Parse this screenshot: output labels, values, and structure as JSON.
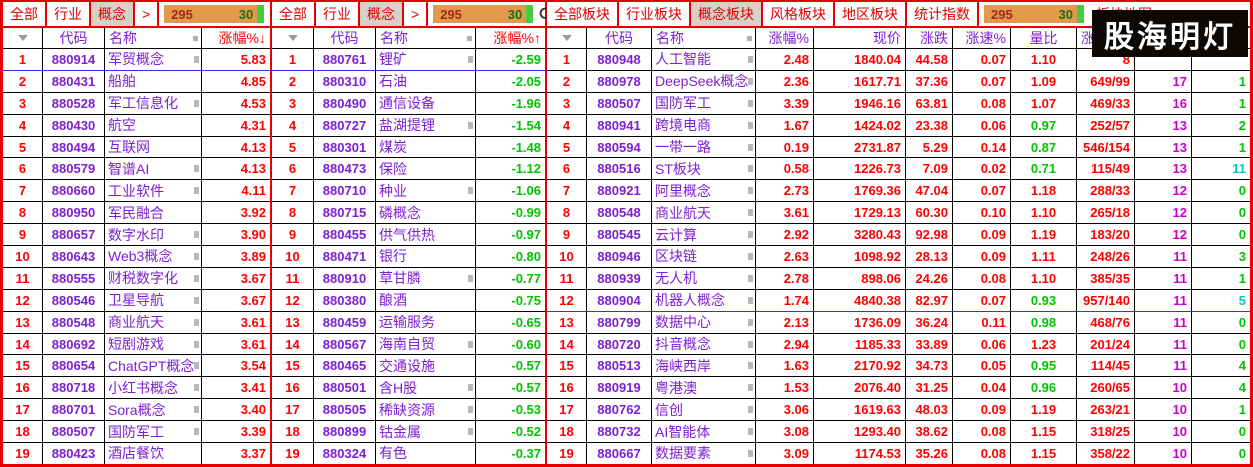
{
  "logo": "股海明灯",
  "colors": {
    "window_border": "#e80000",
    "tab_text": "#e00000",
    "tab_selected_bg": "#d6d2ca",
    "header_purple": "#7d1fd2",
    "up_red": "#ff0000",
    "down_green": "#00c400",
    "count_magenta": "#cc00cc",
    "count_cyan": "#00c8c8",
    "counter_bg": "#e09a4a",
    "counter_up_text": "#a82820",
    "counter_down_text": "#1e6e1e",
    "counter_strip": "#44cc44",
    "grid_line": "#000000",
    "selected_line": "#3333dd"
  },
  "icons": {
    "search": "search-icon (magnifier glyph)",
    "settings": "gear-icon (gear glyph)"
  },
  "panels": [
    {
      "name": "concept-gainers-panel",
      "tabbar": {
        "tabs_before": [
          {
            "label": "全部",
            "selected": false
          },
          {
            "label": "行业",
            "selected": false
          },
          {
            "label": "概念",
            "selected": true
          },
          {
            "label": ">",
            "selected": false
          }
        ],
        "counter": {
          "up": "295",
          "down": "30"
        },
        "tabs_after": [],
        "show_icons": true
      },
      "columns": [
        {
          "key": "num",
          "label": "",
          "cls": "w-num",
          "align": "h-center"
        },
        {
          "key": "code",
          "label": "代码",
          "cls": "w-code",
          "align": "h-center"
        },
        {
          "key": "name",
          "label": "名称",
          "cls": "w-name",
          "align": "h-left"
        },
        {
          "key": "chg",
          "label": "涨幅%",
          "arrow": "↓",
          "hot": true,
          "cls": "w-chg",
          "align": "h-right"
        }
      ],
      "selected_row": 1,
      "rows": [
        {
          "num": "1",
          "code": "880914",
          "name": "军贸概念",
          "chg": "5.83",
          "mark": true
        },
        {
          "num": "2",
          "code": "880431",
          "name": "船舶",
          "chg": "4.85",
          "mark": false
        },
        {
          "num": "3",
          "code": "880528",
          "name": "军工信息化",
          "chg": "4.53",
          "mark": true
        },
        {
          "num": "4",
          "code": "880430",
          "name": "航空",
          "chg": "4.31",
          "mark": false
        },
        {
          "num": "5",
          "code": "880494",
          "name": "互联网",
          "chg": "4.13",
          "mark": false
        },
        {
          "num": "6",
          "code": "880579",
          "name": "智谱AI",
          "chg": "4.13",
          "mark": true
        },
        {
          "num": "7",
          "code": "880660",
          "name": "工业软件",
          "chg": "4.11",
          "mark": true
        },
        {
          "num": "8",
          "code": "880950",
          "name": "军民融合",
          "chg": "3.92",
          "mark": false
        },
        {
          "num": "9",
          "code": "880657",
          "name": "数字水印",
          "chg": "3.90",
          "mark": true
        },
        {
          "num": "10",
          "code": "880643",
          "name": "Web3概念",
          "chg": "3.89",
          "mark": true
        },
        {
          "num": "11",
          "code": "880555",
          "name": "财税数字化",
          "chg": "3.67",
          "mark": true
        },
        {
          "num": "12",
          "code": "880546",
          "name": "卫星导航",
          "chg": "3.67",
          "mark": true
        },
        {
          "num": "13",
          "code": "880548",
          "name": "商业航天",
          "chg": "3.61",
          "mark": true
        },
        {
          "num": "14",
          "code": "880692",
          "name": "短剧游戏",
          "chg": "3.61",
          "mark": true
        },
        {
          "num": "15",
          "code": "880654",
          "name": "ChatGPT概念",
          "chg": "3.54",
          "mark": true
        },
        {
          "num": "16",
          "code": "880718",
          "name": "小红书概念",
          "chg": "3.41",
          "mark": true
        },
        {
          "num": "17",
          "code": "880701",
          "name": "Sora概念",
          "chg": "3.40",
          "mark": true
        },
        {
          "num": "18",
          "code": "880507",
          "name": "国防军工",
          "chg": "3.39",
          "mark": true
        },
        {
          "num": "19",
          "code": "880423",
          "name": "酒店餐饮",
          "chg": "3.37",
          "mark": false
        }
      ]
    },
    {
      "name": "concept-losers-panel",
      "tabbar": {
        "tabs_before": [
          {
            "label": "全部",
            "selected": false
          },
          {
            "label": "行业",
            "selected": false
          },
          {
            "label": "概念",
            "selected": true
          },
          {
            "label": ">",
            "selected": false
          }
        ],
        "counter": {
          "up": "295",
          "down": "30"
        },
        "tabs_after": [],
        "show_icons": true
      },
      "columns": [
        {
          "key": "num",
          "label": "",
          "cls": "w-num",
          "align": "h-center"
        },
        {
          "key": "code",
          "label": "代码",
          "cls": "w-code",
          "align": "h-center"
        },
        {
          "key": "name",
          "label": "名称",
          "cls": "w-name",
          "align": "h-left"
        },
        {
          "key": "chg",
          "label": "涨幅%",
          "arrow": "↑",
          "hot": true,
          "cls": "w-chg",
          "align": "h-right"
        }
      ],
      "selected_row": 1,
      "rows": [
        {
          "num": "1",
          "code": "880761",
          "name": "锂矿",
          "chg": "-2.59",
          "mark": true
        },
        {
          "num": "2",
          "code": "880310",
          "name": "石油",
          "chg": "-2.05",
          "mark": false
        },
        {
          "num": "3",
          "code": "880490",
          "name": "通信设备",
          "chg": "-1.96",
          "mark": false
        },
        {
          "num": "4",
          "code": "880727",
          "name": "盐湖提锂",
          "chg": "-1.54",
          "mark": true
        },
        {
          "num": "5",
          "code": "880301",
          "name": "煤炭",
          "chg": "-1.48",
          "mark": false
        },
        {
          "num": "6",
          "code": "880473",
          "name": "保险",
          "chg": "-1.12",
          "mark": false
        },
        {
          "num": "7",
          "code": "880710",
          "name": "种业",
          "chg": "-1.06",
          "mark": true
        },
        {
          "num": "8",
          "code": "880715",
          "name": "磷概念",
          "chg": "-0.99",
          "mark": false
        },
        {
          "num": "9",
          "code": "880455",
          "name": "供气供热",
          "chg": "-0.97",
          "mark": false
        },
        {
          "num": "10",
          "code": "880471",
          "name": "银行",
          "chg": "-0.80",
          "mark": false
        },
        {
          "num": "11",
          "code": "880910",
          "name": "草甘膦",
          "chg": "-0.77",
          "mark": true
        },
        {
          "num": "12",
          "code": "880380",
          "name": "酿酒",
          "chg": "-0.75",
          "mark": false
        },
        {
          "num": "13",
          "code": "880459",
          "name": "运输服务",
          "chg": "-0.65",
          "mark": false
        },
        {
          "num": "14",
          "code": "880567",
          "name": "海南自贸",
          "chg": "-0.60",
          "mark": true
        },
        {
          "num": "15",
          "code": "880465",
          "name": "交通设施",
          "chg": "-0.57",
          "mark": false
        },
        {
          "num": "16",
          "code": "880501",
          "name": "含H股",
          "chg": "-0.57",
          "mark": true
        },
        {
          "num": "17",
          "code": "880505",
          "name": "稀缺资源",
          "chg": "-0.53",
          "mark": true
        },
        {
          "num": "18",
          "code": "880899",
          "name": "钴金属",
          "chg": "-0.52",
          "mark": true
        },
        {
          "num": "19",
          "code": "880324",
          "name": "有色",
          "chg": "-0.37",
          "mark": false
        }
      ]
    },
    {
      "name": "concept-board-detail-panel",
      "tabbar": {
        "tabs_before": [
          {
            "label": "全部板块",
            "selected": false
          },
          {
            "label": "行业板块",
            "selected": false
          },
          {
            "label": "概念板块",
            "selected": true
          },
          {
            "label": "风格板块",
            "selected": false
          },
          {
            "label": "地区板块",
            "selected": false
          },
          {
            "label": "统计指数",
            "selected": false
          }
        ],
        "counter": {
          "up": "295",
          "down": "30"
        },
        "tabs_after": [
          {
            "label": "板块地图",
            "selected": false,
            "flat": true
          }
        ],
        "show_icons": false
      },
      "columns": [
        {
          "key": "num",
          "label": "",
          "cls": "w-num",
          "align": "h-center"
        },
        {
          "key": "code",
          "label": "代码",
          "cls": "w-code",
          "align": "h-center"
        },
        {
          "key": "name",
          "label": "名称",
          "cls": "w-name",
          "align": "h-left"
        },
        {
          "key": "chg",
          "label": "涨幅%",
          "cls": "w-chg",
          "align": "h-right"
        },
        {
          "key": "price",
          "label": "现价",
          "cls": "w-price",
          "align": "h-right"
        },
        {
          "key": "change",
          "label": "涨跌",
          "cls": "w-change",
          "align": "h-right"
        },
        {
          "key": "speed",
          "label": "涨速%",
          "cls": "w-speed",
          "align": "h-right"
        },
        {
          "key": "liangbi",
          "label": "量比",
          "cls": "w-liangbi",
          "align": "h-center"
        },
        {
          "key": "ratio",
          "label": "涨",
          "cls": "w-ratio",
          "align": "h-left"
        },
        {
          "key": "cnt1",
          "label": "",
          "cls": "w-cnt1",
          "align": "h-right"
        },
        {
          "key": "cnt2",
          "label": "",
          "cls": "w-cnt2",
          "align": "h-right"
        }
      ],
      "selected_row": 12,
      "rows": [
        {
          "num": "1",
          "code": "880948",
          "name": "人工智能",
          "chg": "2.48",
          "price": "1840.04",
          "change": "44.58",
          "speed": "0.07",
          "liangbi": "1.10",
          "ratio": "8",
          "cnt1": "",
          "cnt2": "",
          "cnt2_cyan": false,
          "mark": true
        },
        {
          "num": "2",
          "code": "880978",
          "name": "DeepSeek概念",
          "chg": "2.36",
          "price": "1617.71",
          "change": "37.36",
          "speed": "0.07",
          "liangbi": "1.09",
          "ratio": "649/99",
          "cnt1": "17",
          "cnt2": "1",
          "cnt2_cyan": false,
          "mark": true
        },
        {
          "num": "3",
          "code": "880507",
          "name": "国防军工",
          "chg": "3.39",
          "price": "1946.16",
          "change": "63.81",
          "speed": "0.08",
          "liangbi": "1.07",
          "ratio": "469/33",
          "cnt1": "16",
          "cnt2": "1",
          "cnt2_cyan": false,
          "mark": true
        },
        {
          "num": "4",
          "code": "880941",
          "name": "跨境电商",
          "chg": "1.67",
          "price": "1424.02",
          "change": "23.38",
          "speed": "0.06",
          "liangbi": "0.97",
          "ratio": "252/57",
          "cnt1": "13",
          "cnt2": "2",
          "cnt2_cyan": false,
          "mark": true
        },
        {
          "num": "5",
          "code": "880594",
          "name": "一带一路",
          "chg": "0.19",
          "price": "2731.87",
          "change": "5.29",
          "speed": "0.14",
          "liangbi": "0.87",
          "ratio": "546/154",
          "cnt1": "13",
          "cnt2": "1",
          "cnt2_cyan": false,
          "mark": true
        },
        {
          "num": "6",
          "code": "880516",
          "name": "ST板块",
          "chg": "0.58",
          "price": "1226.73",
          "change": "7.09",
          "speed": "0.02",
          "liangbi": "0.71",
          "ratio": "115/49",
          "cnt1": "13",
          "cnt2": "11",
          "cnt2_cyan": true,
          "mark": true
        },
        {
          "num": "7",
          "code": "880921",
          "name": "阿里概念",
          "chg": "2.73",
          "price": "1769.36",
          "change": "47.04",
          "speed": "0.07",
          "liangbi": "1.18",
          "ratio": "288/33",
          "cnt1": "12",
          "cnt2": "0",
          "cnt2_cyan": false,
          "mark": true
        },
        {
          "num": "8",
          "code": "880548",
          "name": "商业航天",
          "chg": "3.61",
          "price": "1729.13",
          "change": "60.30",
          "speed": "0.10",
          "liangbi": "1.10",
          "ratio": "265/18",
          "cnt1": "12",
          "cnt2": "0",
          "cnt2_cyan": false,
          "mark": true
        },
        {
          "num": "9",
          "code": "880545",
          "name": "云计算",
          "chg": "2.92",
          "price": "3280.43",
          "change": "92.98",
          "speed": "0.09",
          "liangbi": "1.19",
          "ratio": "183/20",
          "cnt1": "12",
          "cnt2": "0",
          "cnt2_cyan": false,
          "mark": true
        },
        {
          "num": "10",
          "code": "880946",
          "name": "区块链",
          "chg": "2.63",
          "price": "1098.92",
          "change": "28.13",
          "speed": "0.09",
          "liangbi": "1.11",
          "ratio": "248/26",
          "cnt1": "11",
          "cnt2": "3",
          "cnt2_cyan": false,
          "mark": true
        },
        {
          "num": "11",
          "code": "880939",
          "name": "无人机",
          "chg": "2.78",
          "price": "898.06",
          "change": "24.26",
          "speed": "0.08",
          "liangbi": "1.10",
          "ratio": "385/35",
          "cnt1": "11",
          "cnt2": "1",
          "cnt2_cyan": false,
          "mark": true
        },
        {
          "num": "12",
          "code": "880904",
          "name": "机器人概念",
          "chg": "1.74",
          "price": "4840.38",
          "change": "82.97",
          "speed": "0.07",
          "liangbi": "0.93",
          "ratio": "957/140",
          "cnt1": "11",
          "cnt2": "5",
          "cnt2_cyan": true,
          "mark": true
        },
        {
          "num": "13",
          "code": "880799",
          "name": "数据中心",
          "chg": "2.13",
          "price": "1736.09",
          "change": "36.24",
          "speed": "0.11",
          "liangbi": "0.98",
          "ratio": "468/76",
          "cnt1": "11",
          "cnt2": "0",
          "cnt2_cyan": false,
          "mark": true
        },
        {
          "num": "14",
          "code": "880720",
          "name": "抖音概念",
          "chg": "2.94",
          "price": "1185.33",
          "change": "33.89",
          "speed": "0.06",
          "liangbi": "1.23",
          "ratio": "201/24",
          "cnt1": "11",
          "cnt2": "0",
          "cnt2_cyan": false,
          "mark": true
        },
        {
          "num": "15",
          "code": "880513",
          "name": "海峡西岸",
          "chg": "1.63",
          "price": "2170.92",
          "change": "34.73",
          "speed": "0.05",
          "liangbi": "0.95",
          "ratio": "114/45",
          "cnt1": "11",
          "cnt2": "4",
          "cnt2_cyan": false,
          "mark": true
        },
        {
          "num": "16",
          "code": "880919",
          "name": "粤港澳",
          "chg": "1.53",
          "price": "2076.40",
          "change": "31.25",
          "speed": "0.04",
          "liangbi": "0.96",
          "ratio": "260/65",
          "cnt1": "10",
          "cnt2": "4",
          "cnt2_cyan": false,
          "mark": true
        },
        {
          "num": "17",
          "code": "880762",
          "name": "信创",
          "chg": "3.06",
          "price": "1619.63",
          "change": "48.03",
          "speed": "0.09",
          "liangbi": "1.19",
          "ratio": "263/21",
          "cnt1": "10",
          "cnt2": "1",
          "cnt2_cyan": false,
          "mark": true
        },
        {
          "num": "18",
          "code": "880732",
          "name": "AI智能体",
          "chg": "3.08",
          "price": "1293.40",
          "change": "38.62",
          "speed": "0.08",
          "liangbi": "1.15",
          "ratio": "318/25",
          "cnt1": "10",
          "cnt2": "0",
          "cnt2_cyan": false,
          "mark": true
        },
        {
          "num": "19",
          "code": "880667",
          "name": "数据要素",
          "chg": "3.09",
          "price": "1174.53",
          "change": "35.26",
          "speed": "0.08",
          "liangbi": "1.15",
          "ratio": "358/22",
          "cnt1": "10",
          "cnt2": "0",
          "cnt2_cyan": false,
          "mark": true
        }
      ]
    }
  ]
}
